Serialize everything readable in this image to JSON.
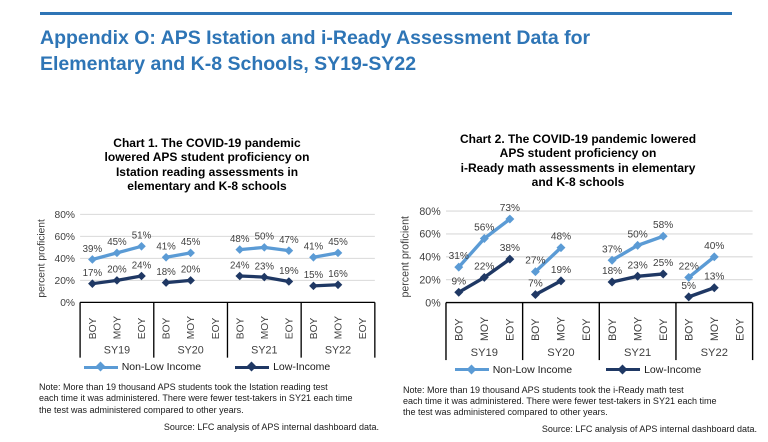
{
  "page": {
    "title": "Appendix O: APS Istation and i-Ready Assessment Data for\nElementary and K-8 Schools, SY19-SY22",
    "accent_color": "#2E75B6"
  },
  "chart_data": [
    {
      "type": "line",
      "title": "Chart 1. The COVID-19 pandemic\nlowered APS student proficiency on\nIstation reading assessments in\nelementary and K-8 schools",
      "ylabel": "percent proficient",
      "ylim": [
        0,
        80
      ],
      "ytick_step": 20,
      "ytick_suffix": "%",
      "grid": true,
      "legend_position": "bottom",
      "marker": "diamond",
      "groups": [
        "SY19",
        "SY20",
        "SY21",
        "SY22"
      ],
      "slots": [
        "BOY",
        "MOY",
        "EOY"
      ],
      "series": [
        {
          "name": "Non-Low Income",
          "color": "#5B9BD5",
          "values": [
            [
              39,
              45,
              51
            ],
            [
              41,
              45,
              null
            ],
            [
              48,
              50,
              47
            ],
            [
              41,
              45,
              null
            ]
          ]
        },
        {
          "name": "Low-Income",
          "color": "#1F3864",
          "values": [
            [
              17,
              20,
              24
            ],
            [
              18,
              20,
              null
            ],
            [
              24,
              23,
              19
            ],
            [
              15,
              16,
              null
            ]
          ]
        }
      ],
      "data_label_suffix": "%",
      "note": "Note: More than 19 thousand APS students took the Istation reading test\neach time it was administered. There were fewer test-takers in SY21 each time\nthe test was administered compared to other years.",
      "source": "Source: LFC analysis of APS internal dashboard data."
    },
    {
      "type": "line",
      "title": "Chart 2. The COVID-19 pandemic lowered\nAPS student proficiency on\ni-Ready math assessments in elementary\nand K-8 schools",
      "ylabel": "percent proficient",
      "ylim": [
        0,
        80
      ],
      "ytick_step": 20,
      "ytick_suffix": "%",
      "grid": true,
      "legend_position": "bottom",
      "marker": "diamond",
      "groups": [
        "SY19",
        "SY20",
        "SY21",
        "SY22"
      ],
      "slots": [
        "BOY",
        "MOY",
        "EOY"
      ],
      "series": [
        {
          "name": "Non-Low Income",
          "color": "#5B9BD5",
          "values": [
            [
              31,
              56,
              73
            ],
            [
              27,
              48,
              null
            ],
            [
              37,
              50,
              58
            ],
            [
              22,
              40,
              null
            ]
          ]
        },
        {
          "name": "Low-Income",
          "color": "#1F3864",
          "values": [
            [
              9,
              22,
              38
            ],
            [
              7,
              19,
              null
            ],
            [
              18,
              23,
              25
            ],
            [
              5,
              13,
              null
            ]
          ]
        }
      ],
      "data_label_suffix": "%",
      "note": "Note: More than 19 thousand APS students took the i-Ready math test\neach time it was administered. There were fewer test-takers in SY21 each time\nthe test was administered compared to other years.",
      "source": "Source: LFC analysis of APS internal dashboard data."
    }
  ]
}
